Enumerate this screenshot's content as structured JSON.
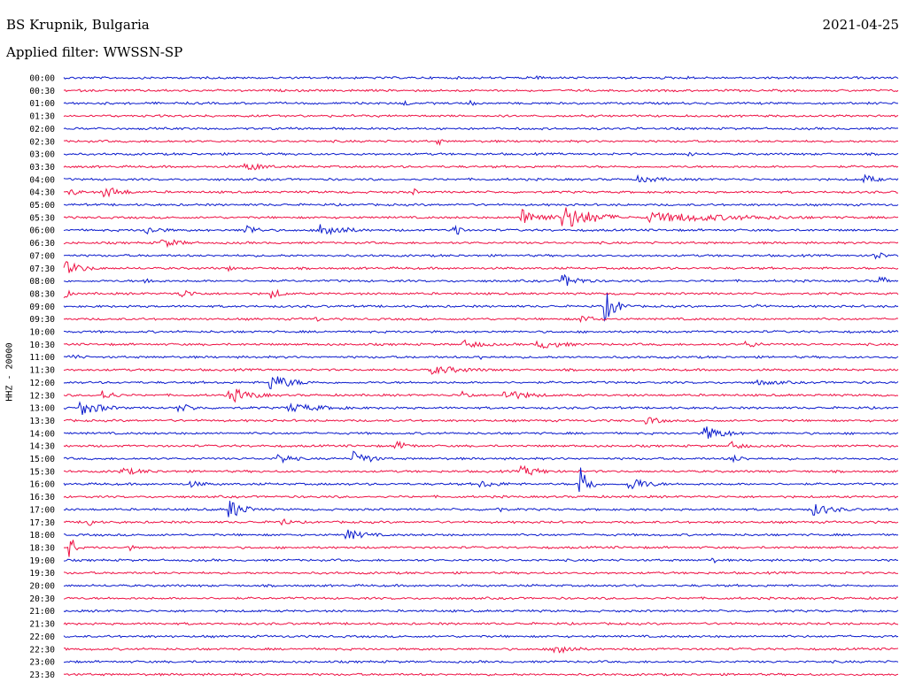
{
  "header": {
    "station": "BS Krupnik, Bulgaria",
    "date": "2021-04-25",
    "filter": "Applied filter: WWSSN-SP"
  },
  "colors": {
    "odd": "#ee1144",
    "even": "#0a1acc"
  },
  "chart_data": {
    "type": "line",
    "title": "BS Krupnik, Bulgaria",
    "subtitle": "Applied filter: WWSSN-SP",
    "ylabel": "HHZ - 20000",
    "xlabel": "",
    "rows": [
      "00:00",
      "00:30",
      "01:00",
      "01:30",
      "02:00",
      "02:30",
      "03:00",
      "03:30",
      "04:00",
      "04:30",
      "05:00",
      "05:30",
      "06:00",
      "06:30",
      "07:00",
      "07:30",
      "08:00",
      "08:30",
      "09:00",
      "09:30",
      "10:00",
      "10:30",
      "11:00",
      "11:30",
      "12:00",
      "12:30",
      "13:00",
      "13:30",
      "14:00",
      "14:30",
      "15:00",
      "15:30",
      "16:00",
      "16:30",
      "17:00",
      "17:30",
      "18:00",
      "18:30",
      "19:00",
      "19:30",
      "20:00",
      "20:30",
      "21:00",
      "21:30",
      "22:00",
      "22:30",
      "23:00",
      "23:30"
    ],
    "events": [
      {
        "row": "00:00",
        "x": 0.57,
        "amp": 3,
        "dur": 0.02
      },
      {
        "row": "00:00",
        "x": 0.75,
        "amp": 2,
        "dur": 0.02
      },
      {
        "row": "01:00",
        "x": 0.41,
        "amp": 4,
        "dur": 0.01
      },
      {
        "row": "01:00",
        "x": 0.49,
        "amp": 3,
        "dur": 0.02
      },
      {
        "row": "02:30",
        "x": 0.45,
        "amp": 4,
        "dur": 0.01
      },
      {
        "row": "03:00",
        "x": 0.75,
        "amp": 3,
        "dur": 0.02
      },
      {
        "row": "03:30",
        "x": 0.22,
        "amp": 5,
        "dur": 0.06
      },
      {
        "row": "03:30",
        "x": 0.58,
        "amp": 2,
        "dur": 0.03
      },
      {
        "row": "04:00",
        "x": 0.69,
        "amp": 4,
        "dur": 0.08
      },
      {
        "row": "04:00",
        "x": 0.96,
        "amp": 5,
        "dur": 0.04
      },
      {
        "row": "04:30",
        "x": 0.01,
        "amp": 4,
        "dur": 0.03
      },
      {
        "row": "04:30",
        "x": 0.05,
        "amp": 7,
        "dur": 0.05
      },
      {
        "row": "04:30",
        "x": 0.42,
        "amp": 4,
        "dur": 0.01
      },
      {
        "row": "05:30",
        "x": 0.55,
        "amp": 10,
        "dur": 0.06
      },
      {
        "row": "05:30",
        "x": 0.6,
        "amp": 14,
        "dur": 0.08
      },
      {
        "row": "05:30",
        "x": 0.7,
        "amp": 6,
        "dur": 0.3
      },
      {
        "row": "06:00",
        "x": 0.1,
        "amp": 5,
        "dur": 0.05
      },
      {
        "row": "06:00",
        "x": 0.22,
        "amp": 7,
        "dur": 0.03
      },
      {
        "row": "06:00",
        "x": 0.31,
        "amp": 9,
        "dur": 0.06
      },
      {
        "row": "06:00",
        "x": 0.47,
        "amp": 13,
        "dur": 0.01
      },
      {
        "row": "06:30",
        "x": 0.12,
        "amp": 5,
        "dur": 0.06
      },
      {
        "row": "07:00",
        "x": 0.97,
        "amp": 6,
        "dur": 0.03
      },
      {
        "row": "07:30",
        "x": 0.0,
        "amp": 9,
        "dur": 0.05
      },
      {
        "row": "07:30",
        "x": 0.2,
        "amp": 4,
        "dur": 0.01
      },
      {
        "row": "08:00",
        "x": 0.1,
        "amp": 4,
        "dur": 0.03
      },
      {
        "row": "08:00",
        "x": 0.6,
        "amp": 7,
        "dur": 0.05
      },
      {
        "row": "08:00",
        "x": 0.98,
        "amp": 6,
        "dur": 0.02
      },
      {
        "row": "08:30",
        "x": 0.0,
        "amp": 6,
        "dur": 0.02
      },
      {
        "row": "08:30",
        "x": 0.14,
        "amp": 5,
        "dur": 0.05
      },
      {
        "row": "08:30",
        "x": 0.25,
        "amp": 6,
        "dur": 0.03
      },
      {
        "row": "09:00",
        "x": 0.65,
        "amp": 16,
        "dur": 0.03
      },
      {
        "row": "09:00",
        "x": 0.83,
        "amp": 5,
        "dur": 0.02
      },
      {
        "row": "09:30",
        "x": 0.3,
        "amp": 4,
        "dur": 0.02
      },
      {
        "row": "09:30",
        "x": 0.62,
        "amp": 5,
        "dur": 0.04
      },
      {
        "row": "10:30",
        "x": 0.48,
        "amp": 5,
        "dur": 0.06
      },
      {
        "row": "10:30",
        "x": 0.57,
        "amp": 5,
        "dur": 0.08
      },
      {
        "row": "10:30",
        "x": 0.82,
        "amp": 4,
        "dur": 0.04
      },
      {
        "row": "11:00",
        "x": 0.01,
        "amp": 4,
        "dur": 0.03
      },
      {
        "row": "11:00",
        "x": 0.5,
        "amp": 3,
        "dur": 0.02
      },
      {
        "row": "11:30",
        "x": 0.44,
        "amp": 5,
        "dur": 0.12
      },
      {
        "row": "12:00",
        "x": 0.25,
        "amp": 9,
        "dur": 0.06
      },
      {
        "row": "12:00",
        "x": 0.83,
        "amp": 3,
        "dur": 0.12
      },
      {
        "row": "12:30",
        "x": 0.05,
        "amp": 6,
        "dur": 0.03
      },
      {
        "row": "12:30",
        "x": 0.2,
        "amp": 9,
        "dur": 0.06
      },
      {
        "row": "12:30",
        "x": 0.48,
        "amp": 6,
        "dur": 0.02
      },
      {
        "row": "12:30",
        "x": 0.53,
        "amp": 6,
        "dur": 0.08
      },
      {
        "row": "13:00",
        "x": 0.02,
        "amp": 9,
        "dur": 0.06
      },
      {
        "row": "13:00",
        "x": 0.14,
        "amp": 5,
        "dur": 0.05
      },
      {
        "row": "13:00",
        "x": 0.27,
        "amp": 5,
        "dur": 0.12
      },
      {
        "row": "13:30",
        "x": 0.7,
        "amp": 4,
        "dur": 0.06
      },
      {
        "row": "14:00",
        "x": 0.77,
        "amp": 8,
        "dur": 0.06
      },
      {
        "row": "14:30",
        "x": 0.4,
        "amp": 5,
        "dur": 0.04
      },
      {
        "row": "14:30",
        "x": 0.8,
        "amp": 5,
        "dur": 0.04
      },
      {
        "row": "15:00",
        "x": 0.26,
        "amp": 6,
        "dur": 0.04
      },
      {
        "row": "15:00",
        "x": 0.35,
        "amp": 9,
        "dur": 0.04
      },
      {
        "row": "15:00",
        "x": 0.8,
        "amp": 4,
        "dur": 0.05
      },
      {
        "row": "15:30",
        "x": 0.07,
        "amp": 4,
        "dur": 0.1
      },
      {
        "row": "15:30",
        "x": 0.55,
        "amp": 6,
        "dur": 0.06
      },
      {
        "row": "16:00",
        "x": 0.15,
        "amp": 4,
        "dur": 0.06
      },
      {
        "row": "16:00",
        "x": 0.5,
        "amp": 4,
        "dur": 0.08
      },
      {
        "row": "16:00",
        "x": 0.62,
        "amp": 24,
        "dur": 0.02
      },
      {
        "row": "16:00",
        "x": 0.68,
        "amp": 8,
        "dur": 0.05
      },
      {
        "row": "17:00",
        "x": 0.2,
        "amp": 11,
        "dur": 0.04
      },
      {
        "row": "17:00",
        "x": 0.52,
        "amp": 6,
        "dur": 0.01
      },
      {
        "row": "17:00",
        "x": 0.9,
        "amp": 7,
        "dur": 0.06
      },
      {
        "row": "17:30",
        "x": 0.03,
        "amp": 10,
        "dur": 0.01
      },
      {
        "row": "17:30",
        "x": 0.26,
        "amp": 5,
        "dur": 0.03
      },
      {
        "row": "18:00",
        "x": 0.34,
        "amp": 6,
        "dur": 0.06
      },
      {
        "row": "18:30",
        "x": 0.01,
        "amp": 12,
        "dur": 0.01
      },
      {
        "row": "18:30",
        "x": 0.08,
        "amp": 4,
        "dur": 0.01
      },
      {
        "row": "19:00",
        "x": 0.78,
        "amp": 3,
        "dur": 0.01
      },
      {
        "row": "22:30",
        "x": 0.59,
        "amp": 9,
        "dur": 0.04
      }
    ]
  }
}
